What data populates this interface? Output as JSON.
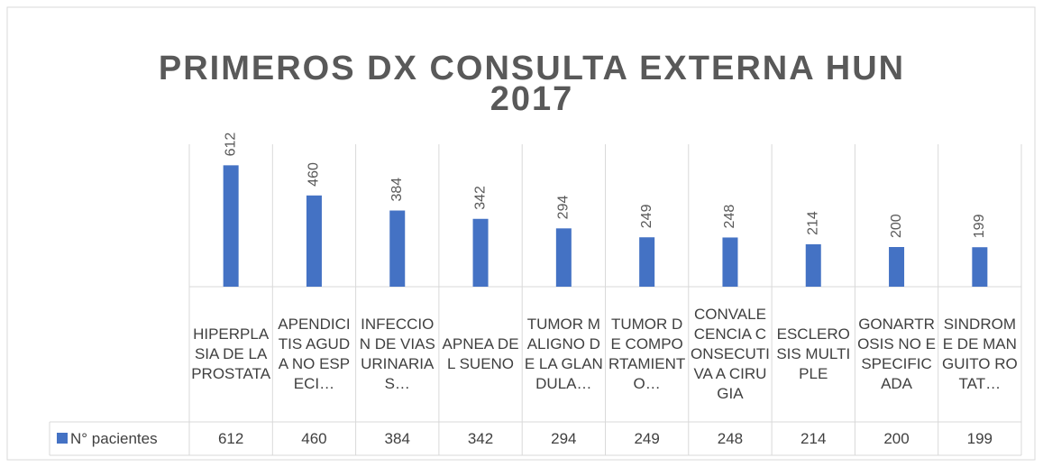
{
  "chart_data": {
    "type": "bar",
    "title": [
      "PRIMEROS DX CONSULTA EXTERNA HUN",
      "2017"
    ],
    "categories": [
      "HIPERPLASIA DE LA PROSTATA",
      "APENDICITIS AGUDA NO ESPECI…",
      "INFECCION DE VIAS URINARIAS…",
      "APNEA DEL SUENO",
      "TUMOR MALIGNO DE LA GLANDULA…",
      "TUMOR DE COMPORTAMIENTO…",
      "CONVALECENCIA CONSECUTIVA A CIRUGIA",
      "ESCLEROSIS MULTIPLE",
      "GONARTROSIS NO ESPECIFICADA",
      "SINDROME DE MANGUITO ROTAT…"
    ],
    "series": [
      {
        "name": "N° pacientes",
        "color": "#4472c4",
        "values": [
          612,
          460,
          384,
          342,
          294,
          249,
          248,
          214,
          200,
          199
        ]
      }
    ],
    "ylim": [
      0,
      700
    ]
  }
}
